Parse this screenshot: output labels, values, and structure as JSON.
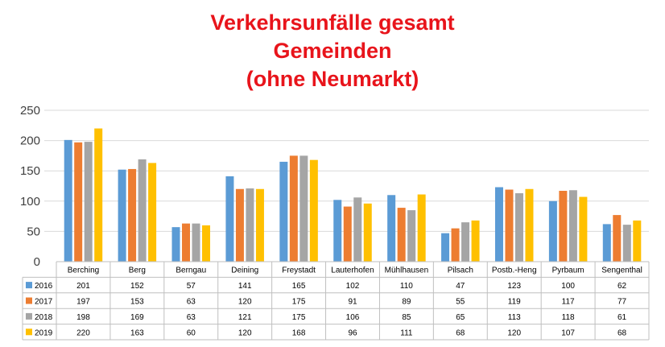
{
  "chart_data": {
    "type": "bar",
    "title_lines": [
      "Verkehrsunfälle gesamt",
      "Gemeinden",
      "(ohne Neumarkt)"
    ],
    "categories": [
      "Berching",
      "Berg",
      "Berngau",
      "Deining",
      "Freystadt",
      "Lauterhofen",
      "Mühlhausen",
      "Pilsach",
      "Postb.-Heng",
      "Pyrbaum",
      "Sengenthal"
    ],
    "series": [
      {
        "name": "2016",
        "color": "#5b9bd5",
        "values": [
          201,
          152,
          57,
          141,
          165,
          102,
          110,
          47,
          123,
          100,
          62
        ]
      },
      {
        "name": "2017",
        "color": "#ed7d31",
        "values": [
          197,
          153,
          63,
          120,
          175,
          91,
          89,
          55,
          119,
          117,
          77
        ]
      },
      {
        "name": "2018",
        "color": "#a5a5a5",
        "values": [
          198,
          169,
          63,
          121,
          175,
          106,
          85,
          65,
          113,
          118,
          61
        ]
      },
      {
        "name": "2019",
        "color": "#ffc000",
        "values": [
          220,
          163,
          60,
          120,
          168,
          96,
          111,
          68,
          120,
          107,
          68
        ]
      }
    ],
    "yticks": [
      "0",
      "50",
      "100",
      "150",
      "200",
      "250"
    ],
    "ylim": [
      0,
      250
    ],
    "grid": true,
    "legend": "data-table-below"
  }
}
